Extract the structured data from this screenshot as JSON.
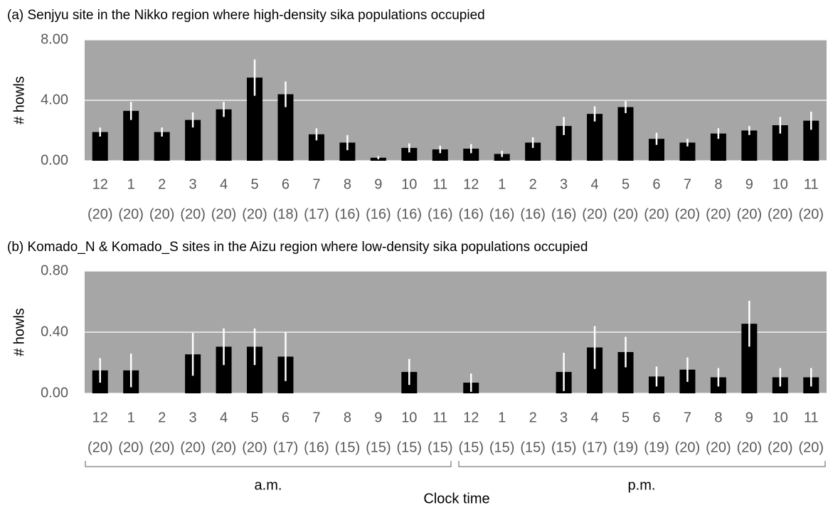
{
  "chart_data": [
    {
      "type": "bar",
      "title": "(a) Senjyu site in the Nikko region where high-density sika populations occupied",
      "ylabel": "# howls",
      "categories": [
        "12",
        "1",
        "2",
        "3",
        "4",
        "5",
        "6",
        "7",
        "8",
        "9",
        "10",
        "11",
        "12",
        "1",
        "2",
        "3",
        "4",
        "5",
        "6",
        "7",
        "8",
        "9",
        "10",
        "11"
      ],
      "n_labels": [
        "(20)",
        "(20)",
        "(20)",
        "(20)",
        "(20)",
        "(20)",
        "(18)",
        "(17)",
        "(16)",
        "(16)",
        "(16)",
        "(16)",
        "(16)",
        "(16)",
        "(16)",
        "(16)",
        "(20)",
        "(20)",
        "(20)",
        "(20)",
        "(20)",
        "(20)",
        "(20)",
        "(20)"
      ],
      "values": [
        1.9,
        3.3,
        1.9,
        2.7,
        3.4,
        5.5,
        4.4,
        1.75,
        1.2,
        0.2,
        0.85,
        0.75,
        0.8,
        0.45,
        1.2,
        2.3,
        3.1,
        3.55,
        1.45,
        1.2,
        1.8,
        2.0,
        2.35,
        2.65
      ],
      "errors": [
        0.3,
        0.6,
        0.3,
        0.5,
        0.5,
        1.2,
        0.85,
        0.4,
        0.5,
        0.1,
        0.3,
        0.25,
        0.3,
        0.2,
        0.35,
        0.6,
        0.5,
        0.4,
        0.4,
        0.25,
        0.35,
        0.3,
        0.55,
        0.6
      ],
      "color": "#000000",
      "error_color": "#ffffff",
      "background": "#a6a6a6",
      "ylim": [
        0,
        8
      ],
      "yticks": [
        {
          "value": 0,
          "label": "0.00"
        },
        {
          "value": 4,
          "label": "4.00"
        },
        {
          "value": 8,
          "label": "8.00"
        }
      ],
      "grid": true
    },
    {
      "type": "bar",
      "title": "(b) Komado_N & Komado_S sites in the Aizu region where low-density sika populations occupied",
      "ylabel": "# howls",
      "xlabel": "Clock time",
      "periods": [
        "a.m.",
        "p.m."
      ],
      "categories": [
        "12",
        "1",
        "2",
        "3",
        "4",
        "5",
        "6",
        "7",
        "8",
        "9",
        "10",
        "11",
        "12",
        "1",
        "2",
        "3",
        "4",
        "5",
        "6",
        "7",
        "8",
        "9",
        "10",
        "11"
      ],
      "n_labels": [
        "(20)",
        "(20)",
        "(20)",
        "(20)",
        "(20)",
        "(20)",
        "(17)",
        "(16)",
        "(15)",
        "(15)",
        "(15)",
        "(15)",
        "(15)",
        "(15)",
        "(15)",
        "(15)",
        "(17)",
        "(19)",
        "(19)",
        "(20)",
        "(20)",
        "(20)",
        "(20)",
        "(20)"
      ],
      "values": [
        0.15,
        0.15,
        0,
        0.255,
        0.305,
        0.305,
        0.24,
        0,
        0,
        0,
        0.14,
        0,
        0.07,
        0,
        0,
        0.14,
        0.3,
        0.27,
        0.11,
        0.155,
        0.105,
        0.455,
        0.105,
        0.105
      ],
      "errors": [
        0.08,
        0.11,
        null,
        0.14,
        0.12,
        0.12,
        0.16,
        null,
        null,
        null,
        0.085,
        null,
        0.06,
        null,
        null,
        0.125,
        0.14,
        0.1,
        0.065,
        0.08,
        0.06,
        0.15,
        0.06,
        0.06
      ],
      "color": "#000000",
      "error_color": "#ffffff",
      "background": "#a6a6a6",
      "ylim": [
        0,
        0.8
      ],
      "yticks": [
        {
          "value": 0,
          "label": "0.00"
        },
        {
          "value": 0.4,
          "label": "0.40"
        },
        {
          "value": 0.8,
          "label": "0.80"
        }
      ],
      "grid": true
    }
  ]
}
